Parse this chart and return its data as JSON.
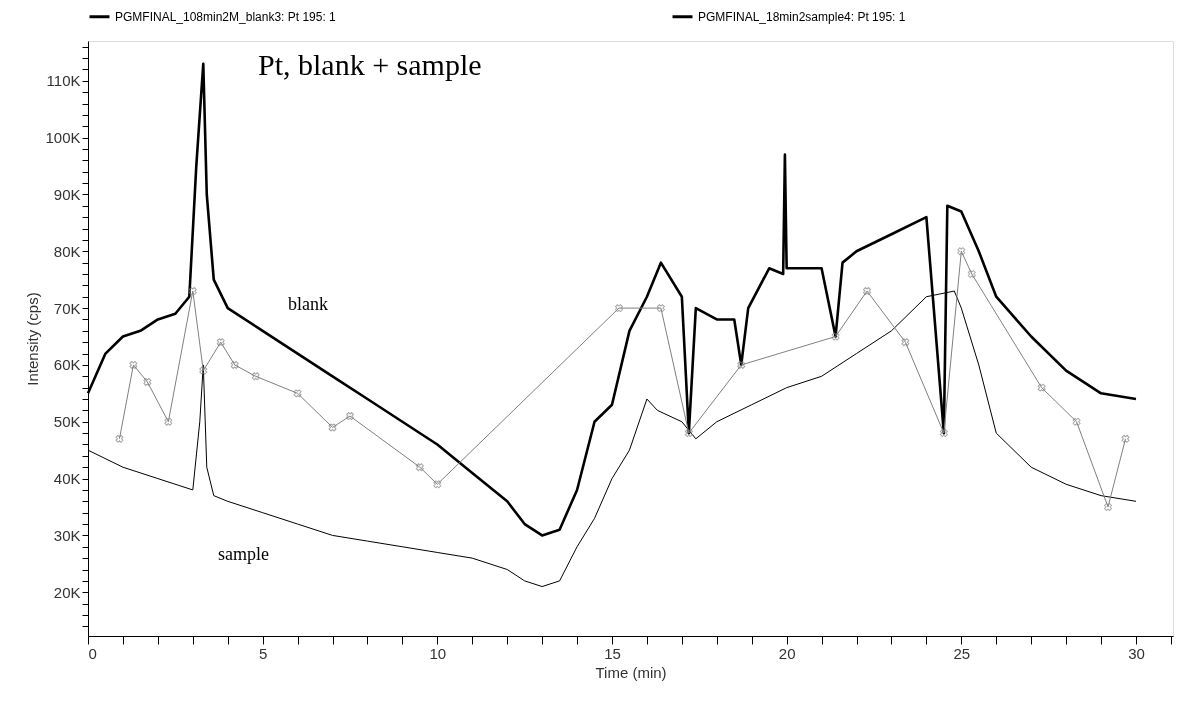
{
  "chart_data": {
    "type": "line",
    "xlabel": "Time (min)",
    "ylabel": "Intensity (cps)",
    "annotations": [
      "Pt, blank + sample",
      "blank",
      "sample"
    ],
    "xlim": [
      0,
      31.06
    ],
    "ylim": [
      12300,
      117000
    ],
    "xticks": [
      0,
      {
        "value": 1,
        "label": null
      },
      {
        "value": 2,
        "label": null
      },
      {
        "value": 3,
        "label": null
      },
      {
        "value": 4,
        "label": null
      },
      5,
      {
        "value": 6,
        "label": null
      },
      {
        "value": 7,
        "label": null
      },
      {
        "value": 8,
        "label": null
      },
      {
        "value": 9,
        "label": null
      },
      10,
      {
        "value": 11,
        "label": null
      },
      {
        "value": 12,
        "label": null
      },
      {
        "value": 13,
        "label": null
      },
      {
        "value": 14,
        "label": null
      },
      15,
      {
        "value": 16,
        "label": null
      },
      {
        "value": 17,
        "label": null
      },
      {
        "value": 18,
        "label": null
      },
      {
        "value": 19,
        "label": null
      },
      20,
      {
        "value": 21,
        "label": null
      },
      {
        "value": 22,
        "label": null
      },
      {
        "value": 23,
        "label": null
      },
      {
        "value": 24,
        "label": null
      },
      25,
      {
        "value": 26,
        "label": null
      },
      {
        "value": 27,
        "label": null
      },
      {
        "value": 28,
        "label": null
      },
      {
        "value": 29,
        "label": null
      },
      30,
      {
        "value": 31,
        "label": null
      }
    ],
    "yticks": [
      {
        "value": 14000,
        "label": null
      },
      {
        "value": 16000,
        "label": null
      },
      {
        "value": 18000,
        "label": null
      },
      {
        "value": 20000,
        "label": "20K"
      },
      {
        "value": 22000,
        "label": null
      },
      {
        "value": 24000,
        "label": null
      },
      {
        "value": 26000,
        "label": null
      },
      {
        "value": 28000,
        "label": null
      },
      {
        "value": 30000,
        "label": "30K"
      },
      {
        "value": 32000,
        "label": null
      },
      {
        "value": 34000,
        "label": null
      },
      {
        "value": 36000,
        "label": null
      },
      {
        "value": 38000,
        "label": null
      },
      {
        "value": 40000,
        "label": "40K"
      },
      {
        "value": 42000,
        "label": null
      },
      {
        "value": 44000,
        "label": null
      },
      {
        "value": 46000,
        "label": null
      },
      {
        "value": 48000,
        "label": null
      },
      {
        "value": 50000,
        "label": "50K"
      },
      {
        "value": 52000,
        "label": null
      },
      {
        "value": 54000,
        "label": null
      },
      {
        "value": 56000,
        "label": null
      },
      {
        "value": 58000,
        "label": null
      },
      {
        "value": 60000,
        "label": "60K"
      },
      {
        "value": 62000,
        "label": null
      },
      {
        "value": 64000,
        "label": null
      },
      {
        "value": 66000,
        "label": null
      },
      {
        "value": 68000,
        "label": null
      },
      {
        "value": 70000,
        "label": "70K"
      },
      {
        "value": 72000,
        "label": null
      },
      {
        "value": 74000,
        "label": null
      },
      {
        "value": 76000,
        "label": null
      },
      {
        "value": 78000,
        "label": null
      },
      {
        "value": 80000,
        "label": "80K"
      },
      {
        "value": 82000,
        "label": null
      },
      {
        "value": 84000,
        "label": null
      },
      {
        "value": 86000,
        "label": null
      },
      {
        "value": 88000,
        "label": null
      },
      {
        "value": 90000,
        "label": "90K"
      },
      {
        "value": 92000,
        "label": null
      },
      {
        "value": 94000,
        "label": null
      },
      {
        "value": 96000,
        "label": null
      },
      {
        "value": 98000,
        "label": null
      },
      {
        "value": 100000,
        "label": "100K"
      },
      {
        "value": 102000,
        "label": null
      },
      {
        "value": 104000,
        "label": null
      },
      {
        "value": 106000,
        "label": null
      },
      {
        "value": 108000,
        "label": null
      },
      {
        "value": 110000,
        "label": "110K"
      },
      {
        "value": 112000,
        "label": null
      },
      {
        "value": 114000,
        "label": null
      },
      {
        "value": 116000,
        "label": null
      }
    ],
    "grid": false,
    "legend": "top",
    "series": [
      {
        "name": "PGMFINAL_108min2M_blank3: Pt 195: 1",
        "color": "#000000",
        "marker": "none",
        "x": [
          0,
          0.5,
          1,
          1.5,
          2,
          2.5,
          2.9,
          3.1,
          3.3,
          3.4,
          3.6,
          4,
          5,
          6,
          7,
          8,
          9,
          10,
          11,
          12,
          12.5,
          13,
          13.5,
          14,
          14.5,
          15,
          15.5,
          16,
          16.4,
          17,
          17.2,
          17.4,
          18,
          18.5,
          18.7,
          18.9,
          19.5,
          19.9,
          19.95,
          20,
          21,
          21.4,
          21.6,
          22,
          23,
          24,
          24.5,
          24.6,
          25,
          25.5,
          26,
          27,
          28,
          29,
          30
        ],
        "values": [
          55000,
          62000,
          65000,
          66000,
          68000,
          69000,
          72000,
          95000,
          113000,
          90000,
          75000,
          70000,
          66000,
          62000,
          58000,
          54000,
          50000,
          46000,
          41000,
          36000,
          32000,
          30000,
          31000,
          38000,
          50000,
          53000,
          66000,
          72000,
          78000,
          72000,
          48000,
          70000,
          68000,
          68000,
          60000,
          70000,
          77000,
          76000,
          97000,
          77000,
          77000,
          65000,
          78000,
          80000,
          83000,
          86000,
          48000,
          88000,
          87000,
          80000,
          72000,
          65000,
          59000,
          55000,
          54000
        ]
      },
      {
        "name": "PGMFINAL_18min2sample4: Pt 195: 1",
        "color": "#000000",
        "marker": "none",
        "x": [
          0,
          1,
          2,
          3,
          3.2,
          3.3,
          3.4,
          3.6,
          4,
          5,
          6,
          7,
          8,
          9,
          10,
          11,
          12,
          12.5,
          13,
          13.5,
          14,
          14.5,
          15,
          15.5,
          16,
          16.3,
          17,
          17.4,
          18,
          19,
          20,
          21,
          22,
          23,
          24,
          24.8,
          25,
          25.5,
          26,
          27,
          28,
          29,
          30
        ],
        "values": [
          45000,
          42000,
          40000,
          38000,
          50000,
          60000,
          42000,
          37000,
          36000,
          34000,
          32000,
          30000,
          29000,
          28000,
          27000,
          26000,
          24000,
          22000,
          21000,
          22000,
          28000,
          33000,
          40000,
          45000,
          54000,
          52000,
          50000,
          47000,
          50000,
          53000,
          56000,
          58000,
          62000,
          66000,
          72000,
          73000,
          70000,
          60000,
          48000,
          42000,
          39000,
          37000,
          36000
        ]
      },
      {
        "color": "#808080",
        "marker": "cross",
        "x": [
          0.9,
          1.3,
          1.7,
          2.3,
          3,
          3.3,
          3.8,
          4.2,
          4.8,
          6,
          7,
          7.5,
          9.5,
          10,
          15.2,
          16.4,
          17.2,
          18.7,
          21.4,
          22.3,
          23.4,
          24.5,
          25,
          25.3,
          27.3,
          28.3,
          29.2,
          29.7
        ],
        "values": [
          47000,
          60000,
          57000,
          50000,
          73000,
          59000,
          64000,
          60000,
          58000,
          55000,
          49000,
          51000,
          42000,
          39000,
          70000,
          70000,
          48000,
          60000,
          65000,
          73000,
          64000,
          48000,
          80000,
          76000,
          56000,
          50000,
          35000,
          47000
        ]
      }
    ]
  }
}
